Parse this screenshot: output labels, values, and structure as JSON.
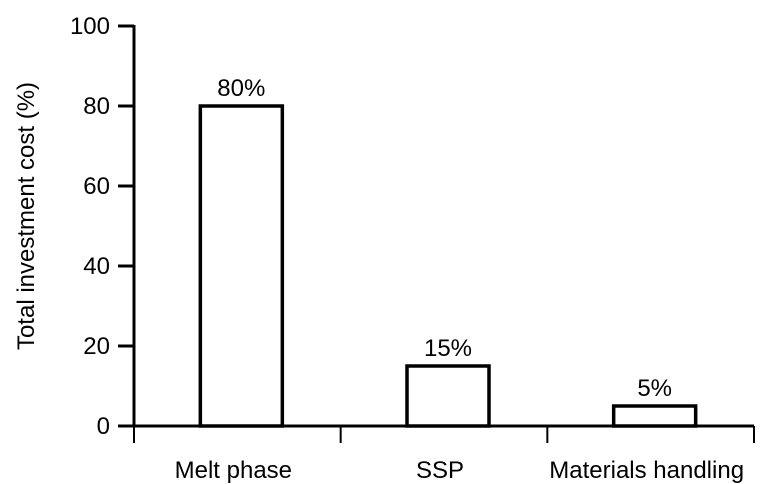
{
  "chart_data": {
    "type": "bar",
    "categories": [
      "Melt phase",
      "SSP",
      "Materials handling"
    ],
    "values": [
      80,
      15,
      5
    ],
    "data_labels": [
      "80%",
      "15%",
      "5%"
    ],
    "title": "",
    "xlabel": "",
    "ylabel": "Total investment cost (%)",
    "ylim": [
      0,
      100
    ],
    "yticks": [
      0,
      20,
      40,
      60,
      80,
      100
    ],
    "ytick_labels": [
      "0",
      "20",
      "40",
      "60",
      "80",
      "100"
    ],
    "grid": false,
    "legend": "none",
    "colors": {
      "bar_fill": "#ffffff",
      "bar_stroke": "#000000",
      "axis": "#000000"
    }
  }
}
